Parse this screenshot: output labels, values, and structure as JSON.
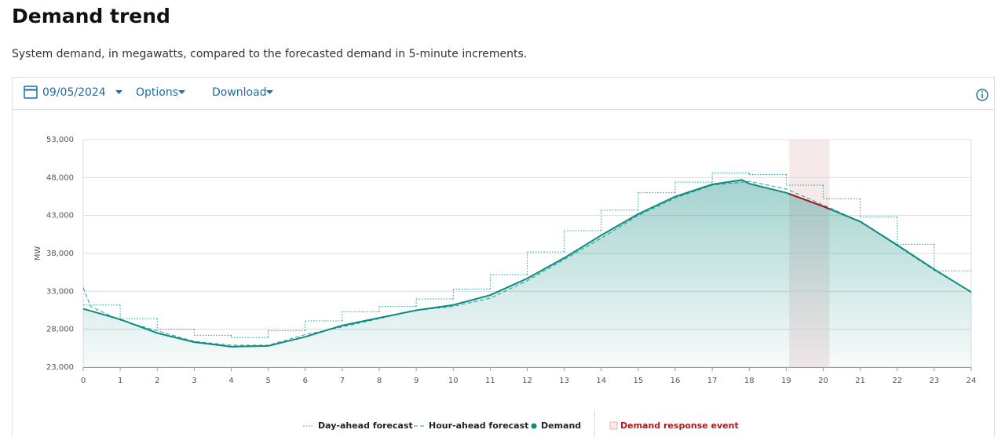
{
  "header": {
    "title": "Demand trend",
    "subtitle": "System demand, in megawatts, compared to the forecasted demand in 5-minute increments."
  },
  "toolbar": {
    "date": "09/05/2024",
    "options": "Options",
    "download": "Download"
  },
  "chart_data": {
    "type": "line",
    "y_label": "MW",
    "xlim": [
      0,
      24
    ],
    "xticks": [
      0,
      1,
      2,
      3,
      4,
      5,
      6,
      7,
      8,
      9,
      10,
      11,
      12,
      13,
      14,
      15,
      16,
      17,
      18,
      19,
      20,
      21,
      22,
      23,
      24
    ],
    "ylim": [
      23000,
      53000
    ],
    "yticks": [
      {
        "value": 23000,
        "label": "23,000"
      },
      {
        "value": 28000,
        "label": "28,000"
      },
      {
        "value": 33000,
        "label": "33,000"
      },
      {
        "value": 38000,
        "label": "38,000"
      },
      {
        "value": 43000,
        "label": "43,000"
      },
      {
        "value": 48000,
        "label": "48,000"
      },
      {
        "value": 53000,
        "label": "53,000"
      }
    ],
    "grid": true,
    "series": [
      {
        "name": "Day-ahead forecast",
        "color": "#1aa59a",
        "dash": "dotted",
        "step": true,
        "x": [
          0,
          1,
          2,
          3,
          4,
          5,
          6,
          7,
          8,
          9,
          10,
          11,
          12,
          13,
          14,
          15,
          16,
          17,
          18,
          19,
          20,
          21,
          22,
          23
        ],
        "values": [
          31200,
          29400,
          28000,
          27200,
          26900,
          27800,
          29100,
          30300,
          31000,
          32000,
          33300,
          35200,
          38200,
          41000,
          43700,
          46000,
          47400,
          48600,
          48400,
          47000,
          45200,
          42800,
          39200,
          35700
        ]
      },
      {
        "name": "Hour-ahead forecast",
        "color": "#1aa59a",
        "dash": "dashed",
        "step": false,
        "x": [
          0,
          0.2,
          1,
          2,
          3,
          4,
          5,
          6,
          7,
          8,
          9,
          10,
          11,
          12,
          13,
          14,
          15,
          16,
          17,
          18,
          19,
          20,
          21,
          22,
          23,
          24
        ],
        "values": [
          33500,
          31000,
          29200,
          27800,
          26400,
          25900,
          25900,
          27300,
          28300,
          29400,
          30500,
          31000,
          32100,
          34400,
          37200,
          40000,
          43000,
          45300,
          47000,
          47500,
          46500,
          44400,
          42200,
          39000,
          35800,
          32900
        ]
      },
      {
        "name": "Demand",
        "color": "#0e8a80",
        "dash": "solid",
        "step": false,
        "fill": true,
        "x": [
          0,
          1,
          2,
          3,
          4,
          5,
          6,
          7,
          8,
          9,
          10,
          11,
          12,
          13,
          14,
          15,
          16,
          17,
          17.8,
          18,
          19,
          20,
          21,
          22,
          23,
          24
        ],
        "values": [
          30700,
          29300,
          27500,
          26300,
          25700,
          25800,
          27000,
          28500,
          29500,
          30500,
          31200,
          32500,
          34700,
          37400,
          40400,
          43200,
          45500,
          47100,
          47700,
          47200,
          46000,
          44200,
          42200,
          39100,
          35900,
          32900
        ]
      }
    ],
    "event": {
      "name": "Demand response event",
      "range": [
        19.08,
        20.17
      ],
      "color": "#f6e9ea",
      "line_color": "#b3141c"
    }
  }
}
